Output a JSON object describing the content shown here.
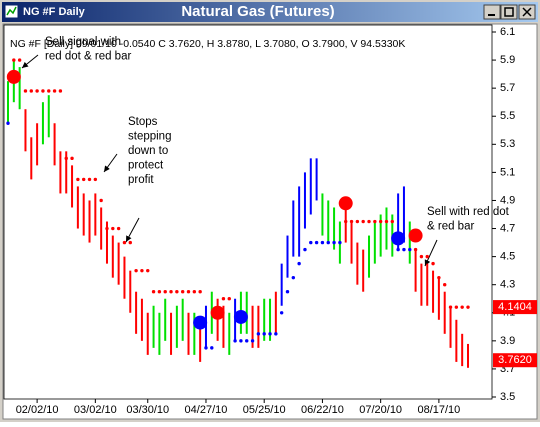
{
  "window": {
    "title": "NG #F Daily"
  },
  "chart_data": {
    "type": "ohlc",
    "title": "Natural Gas (Futures)",
    "info": "NG #F [Daily] 09/01/10 -0.0540 C 3.7620, H 3.8780, L 3.7080, O 3.7900, V 94.5330K",
    "categories": [
      null,
      null,
      null,
      null,
      null,
      "02/02/10",
      null,
      null,
      null,
      null,
      null,
      null,
      null,
      null,
      null,
      "03/02/10",
      null,
      null,
      null,
      null,
      null,
      null,
      null,
      null,
      "03/30/10",
      null,
      null,
      null,
      null,
      null,
      null,
      null,
      null,
      null,
      "04/27/10",
      null,
      null,
      null,
      null,
      null,
      null,
      null,
      null,
      null,
      "05/25/10",
      null,
      null,
      null,
      null,
      null,
      null,
      null,
      null,
      null,
      "06/22/10",
      null,
      null,
      null,
      null,
      null,
      null,
      null,
      null,
      null,
      "07/20/10",
      null,
      null,
      null,
      null,
      null,
      null,
      null,
      null,
      null,
      "08/17/10",
      null,
      null,
      null,
      null,
      null
    ],
    "high": [
      5.75,
      5.9,
      5.85,
      5.55,
      5.35,
      5.45,
      5.6,
      5.65,
      5.45,
      5.25,
      5.25,
      5.15,
      5.0,
      4.95,
      4.9,
      4.95,
      4.85,
      4.75,
      4.65,
      4.6,
      4.5,
      4.4,
      4.25,
      4.2,
      4.1,
      4.15,
      4.1,
      4.2,
      4.1,
      4.15,
      4.2,
      4.1,
      4.1,
      4.05,
      4.15,
      4.25,
      4.2,
      4.15,
      4.1,
      4.2,
      4.25,
      4.25,
      4.15,
      4.15,
      4.2,
      4.2,
      4.25,
      4.45,
      4.65,
      4.9,
      5.0,
      5.1,
      5.2,
      5.2,
      4.95,
      4.9,
      4.85,
      4.75,
      4.9,
      4.75,
      4.6,
      4.55,
      4.65,
      4.75,
      4.8,
      4.85,
      4.8,
      4.95,
      5.0,
      4.75,
      4.55,
      4.45,
      4.45,
      4.4,
      4.35,
      4.25,
      4.15,
      4.05,
      3.95,
      3.878
    ],
    "low": [
      5.45,
      5.6,
      5.55,
      5.25,
      5.05,
      5.15,
      5.3,
      5.35,
      5.15,
      4.95,
      4.95,
      4.85,
      4.7,
      4.65,
      4.6,
      4.65,
      4.55,
      4.45,
      4.35,
      4.3,
      4.2,
      4.1,
      3.95,
      3.9,
      3.8,
      3.85,
      3.8,
      3.9,
      3.8,
      3.85,
      3.9,
      3.8,
      3.8,
      3.75,
      3.85,
      3.95,
      3.9,
      3.85,
      3.8,
      3.9,
      3.95,
      3.95,
      3.85,
      3.85,
      3.9,
      3.9,
      3.95,
      4.15,
      4.35,
      4.5,
      4.5,
      4.7,
      4.8,
      4.9,
      4.65,
      4.6,
      4.55,
      4.45,
      4.6,
      4.45,
      4.3,
      4.25,
      4.35,
      4.45,
      4.5,
      4.55,
      4.5,
      4.55,
      4.6,
      4.45,
      4.25,
      4.15,
      4.15,
      4.1,
      4.05,
      3.95,
      3.85,
      3.75,
      3.72,
      3.708
    ],
    "bar_colors": [
      "#00e000",
      "#00e000",
      "#00e000",
      "#ff0000",
      "#ff0000",
      "#ff0000",
      "#00e000",
      "#00e000",
      "#ff0000",
      "#ff0000",
      "#ff0000",
      "#ff0000",
      "#ff0000",
      "#ff0000",
      "#ff0000",
      "#ff0000",
      "#ff0000",
      "#ff0000",
      "#ff0000",
      "#ff0000",
      "#ff0000",
      "#ff0000",
      "#ff0000",
      "#ff0000",
      "#ff0000",
      "#00e000",
      "#00e000",
      "#00e000",
      "#ff0000",
      "#00e000",
      "#00e000",
      "#ff0000",
      "#00e000",
      "#ff0000",
      "#0000ff",
      "#00e000",
      "#ff0000",
      "#ff0000",
      "#00e000",
      "#0000ff",
      "#00e000",
      "#00e000",
      "#ff0000",
      "#ff0000",
      "#00e000",
      "#00e000",
      "#ff0000",
      "#0000ff",
      "#0000ff",
      "#0000ff",
      "#0000ff",
      "#0000ff",
      "#0000ff",
      "#0000ff",
      "#00e000",
      "#00e000",
      "#00e000",
      "#00e000",
      "#ff0000",
      "#ff0000",
      "#ff0000",
      "#ff0000",
      "#00e000",
      "#00e000",
      "#00e000",
      "#00e000",
      "#00e000",
      "#0000ff",
      "#0000ff",
      "#00e000",
      "#ff0000",
      "#ff0000",
      "#ff0000",
      "#ff0000",
      "#ff0000",
      "#ff0000",
      "#ff0000",
      "#ff0000",
      "#ff0000",
      "#ff0000"
    ],
    "sell_stops": [
      null,
      5.9,
      5.9,
      5.68,
      5.68,
      5.68,
      5.68,
      5.68,
      5.68,
      5.68,
      5.2,
      5.2,
      5.05,
      5.05,
      5.05,
      5.05,
      4.9,
      4.7,
      4.7,
      4.7,
      4.6,
      4.6,
      4.4,
      4.4,
      4.4,
      4.25,
      4.25,
      4.25,
      4.25,
      4.25,
      4.25,
      4.25,
      4.25,
      4.25,
      null,
      null,
      null,
      4.2,
      4.2,
      null,
      null,
      null,
      null,
      null,
      null,
      null,
      null,
      null,
      null,
      null,
      null,
      null,
      null,
      null,
      null,
      null,
      null,
      null,
      4.75,
      4.75,
      4.75,
      4.75,
      4.75,
      4.75,
      4.75,
      4.75,
      4.75,
      null,
      null,
      null,
      4.55,
      4.5,
      4.5,
      4.45,
      4.35,
      4.3,
      4.14,
      4.14,
      4.14,
      4.14
    ],
    "buy_stops": [
      5.45,
      null,
      null,
      null,
      null,
      null,
      null,
      null,
      null,
      null,
      null,
      null,
      null,
      null,
      null,
      null,
      null,
      null,
      null,
      null,
      null,
      null,
      null,
      null,
      null,
      null,
      null,
      null,
      null,
      null,
      null,
      null,
      null,
      null,
      3.85,
      3.85,
      null,
      null,
      null,
      3.9,
      3.9,
      3.9,
      3.9,
      3.95,
      3.95,
      3.95,
      3.95,
      4.1,
      4.25,
      4.35,
      4.45,
      4.55,
      4.6,
      4.6,
      4.6,
      4.6,
      4.6,
      4.6,
      null,
      null,
      null,
      null,
      null,
      null,
      null,
      null,
      null,
      4.55,
      4.55,
      4.55,
      null,
      null,
      null,
      null,
      null,
      null,
      null,
      null,
      null,
      null
    ],
    "sell_signals": [
      null,
      5.78,
      null,
      null,
      null,
      null,
      null,
      null,
      null,
      null,
      null,
      null,
      null,
      null,
      null,
      null,
      null,
      null,
      null,
      null,
      null,
      null,
      null,
      null,
      null,
      null,
      null,
      null,
      null,
      null,
      null,
      null,
      null,
      null,
      null,
      null,
      4.1,
      null,
      null,
      null,
      null,
      null,
      null,
      null,
      null,
      null,
      null,
      null,
      null,
      null,
      null,
      null,
      null,
      null,
      null,
      null,
      null,
      null,
      4.88,
      null,
      null,
      null,
      null,
      null,
      null,
      null,
      null,
      null,
      null,
      null,
      4.65,
      null,
      null,
      null,
      null,
      null,
      null,
      null,
      null,
      null
    ],
    "buy_signals": [
      null,
      null,
      null,
      null,
      null,
      null,
      null,
      null,
      null,
      null,
      null,
      null,
      null,
      null,
      null,
      null,
      null,
      null,
      null,
      null,
      null,
      null,
      null,
      null,
      null,
      null,
      null,
      null,
      null,
      null,
      null,
      null,
      null,
      4.03,
      null,
      null,
      null,
      null,
      null,
      null,
      4.07,
      null,
      null,
      null,
      null,
      null,
      null,
      null,
      null,
      null,
      null,
      null,
      null,
      null,
      null,
      null,
      null,
      null,
      null,
      null,
      null,
      null,
      null,
      null,
      null,
      null,
      null,
      4.63,
      null,
      null,
      null,
      null,
      null,
      null,
      null,
      null,
      null,
      null,
      null,
      null
    ],
    "ylim": [
      3.5,
      6.1
    ],
    "yticks": [
      3.5,
      3.7,
      3.9,
      4.1,
      4.3,
      4.5,
      4.7,
      4.9,
      5.1,
      5.3,
      5.5,
      5.7,
      5.9,
      6.1
    ],
    "axis_value_labels": [
      4.1404,
      {
        "value": 3.762,
        "label": "3.7620"
      }
    ],
    "annotations": [
      {
        "lines": [
          "Sell signal with",
          "red dot & red bar"
        ]
      },
      {
        "lines": [
          "Stops",
          "stepping",
          "down to",
          "protect",
          "profit"
        ]
      },
      {
        "lines": [
          "Sell with red dot",
          "& red bar"
        ]
      }
    ]
  }
}
